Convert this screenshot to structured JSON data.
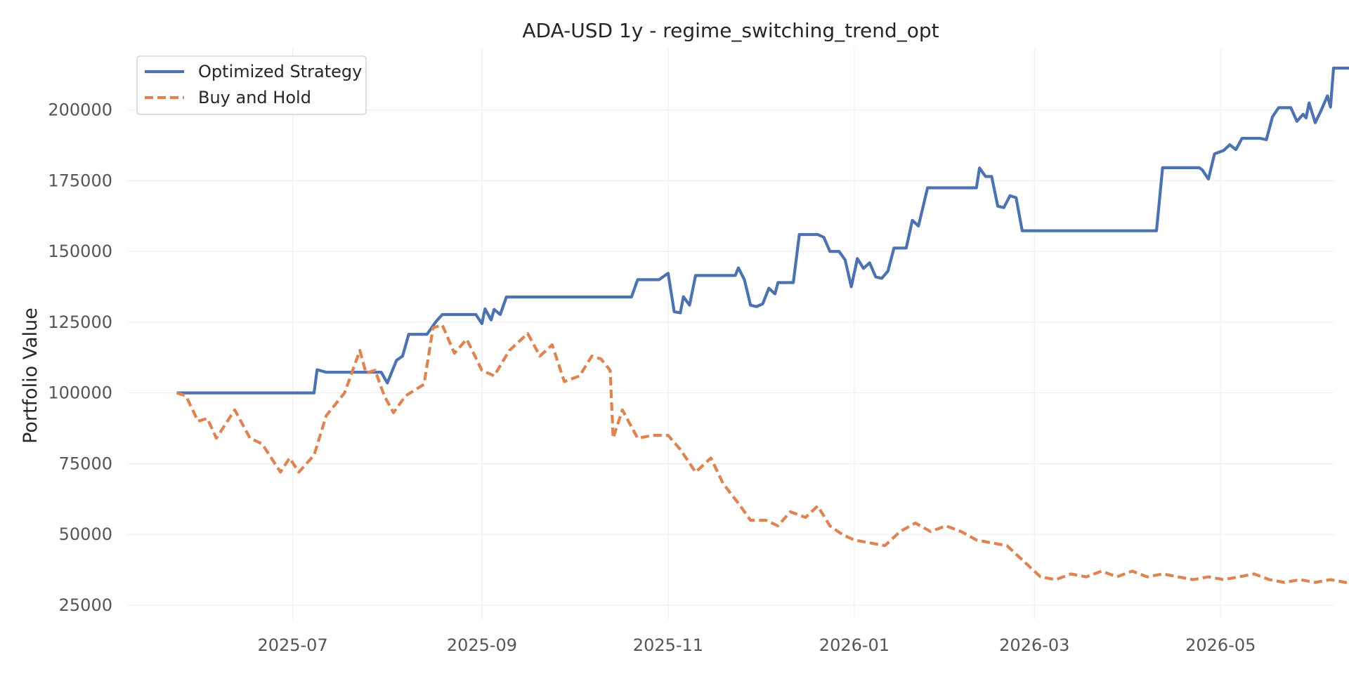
{
  "chart_data": {
    "type": "line",
    "title": "ADA-USD 1y - regime_switching_trend_opt",
    "xlabel": "",
    "ylabel": "Portfolio Value",
    "x_ticks": [
      "2025-07",
      "2025-09",
      "2025-11",
      "2026-01",
      "2026-03",
      "2026-05"
    ],
    "y_ticks": [
      25000,
      50000,
      75000,
      100000,
      125000,
      150000,
      175000,
      200000
    ],
    "xlim": [
      "2025-05-08",
      "2026-06-07"
    ],
    "ylim": [
      20000,
      222000
    ],
    "grid": true,
    "legend_position": "top-left",
    "series": [
      {
        "name": "Optimized Strategy",
        "color": "#4c72b0",
        "style": "solid",
        "points": [
          [
            "2025-05-24",
            100000
          ],
          [
            "2025-06-15",
            100000
          ],
          [
            "2025-07-08",
            100000
          ],
          [
            "2025-07-09",
            108200
          ],
          [
            "2025-07-12",
            107300
          ],
          [
            "2025-07-25",
            107300
          ],
          [
            "2025-07-30",
            107300
          ],
          [
            "2025-08-01",
            103500
          ],
          [
            "2025-08-04",
            111500
          ],
          [
            "2025-08-06",
            113000
          ],
          [
            "2025-08-08",
            120700
          ],
          [
            "2025-08-14",
            120700
          ],
          [
            "2025-08-17",
            125300
          ],
          [
            "2025-08-19",
            127700
          ],
          [
            "2025-08-30",
            127700
          ],
          [
            "2025-09-01",
            124500
          ],
          [
            "2025-09-02",
            129700
          ],
          [
            "2025-09-04",
            125800
          ],
          [
            "2025-09-05",
            129500
          ],
          [
            "2025-09-07",
            127700
          ],
          [
            "2025-09-09",
            133900
          ],
          [
            "2025-09-25",
            133900
          ],
          [
            "2025-10-20",
            133900
          ],
          [
            "2025-10-22",
            140000
          ],
          [
            "2025-10-29",
            140000
          ],
          [
            "2025-11-01",
            142300
          ],
          [
            "2025-11-03",
            128700
          ],
          [
            "2025-11-05",
            128300
          ],
          [
            "2025-11-06",
            134000
          ],
          [
            "2025-11-08",
            131000
          ],
          [
            "2025-11-10",
            141500
          ],
          [
            "2025-11-23",
            141500
          ],
          [
            "2025-11-24",
            144200
          ],
          [
            "2025-11-26",
            140000
          ],
          [
            "2025-11-28",
            131000
          ],
          [
            "2025-11-30",
            130500
          ],
          [
            "2025-12-02",
            131500
          ],
          [
            "2025-12-04",
            137000
          ],
          [
            "2025-12-06",
            135000
          ],
          [
            "2025-12-07",
            139000
          ],
          [
            "2025-12-12",
            139000
          ],
          [
            "2025-12-14",
            156000
          ],
          [
            "2025-12-20",
            156000
          ],
          [
            "2025-12-22",
            155000
          ],
          [
            "2025-12-24",
            150000
          ],
          [
            "2025-12-27",
            150000
          ],
          [
            "2025-12-29",
            147000
          ],
          [
            "2025-12-31",
            137500
          ],
          [
            "2026-01-02",
            147500
          ],
          [
            "2026-01-04",
            144000
          ],
          [
            "2026-01-06",
            146000
          ],
          [
            "2026-01-08",
            141000
          ],
          [
            "2026-01-10",
            140500
          ],
          [
            "2026-01-12",
            143000
          ],
          [
            "2026-01-14",
            151200
          ],
          [
            "2026-01-18",
            151200
          ],
          [
            "2026-01-20",
            161000
          ],
          [
            "2026-01-22",
            159000
          ],
          [
            "2026-01-25",
            172500
          ],
          [
            "2026-02-10",
            172500
          ],
          [
            "2026-02-11",
            179500
          ],
          [
            "2026-02-13",
            176500
          ],
          [
            "2026-02-15",
            176500
          ],
          [
            "2026-02-17",
            166000
          ],
          [
            "2026-02-19",
            165500
          ],
          [
            "2026-02-21",
            169700
          ],
          [
            "2026-02-23",
            169000
          ],
          [
            "2026-02-25",
            157300
          ],
          [
            "2026-03-15",
            157300
          ],
          [
            "2026-04-10",
            157300
          ],
          [
            "2026-04-12",
            179600
          ],
          [
            "2026-04-24",
            179600
          ],
          [
            "2026-04-25",
            178800
          ],
          [
            "2026-04-27",
            175600
          ],
          [
            "2026-04-29",
            184500
          ],
          [
            "2026-05-02",
            185700
          ],
          [
            "2026-05-04",
            187700
          ],
          [
            "2026-05-06",
            186000
          ],
          [
            "2026-05-08",
            190000
          ],
          [
            "2026-05-14",
            190000
          ],
          [
            "2026-05-16",
            189500
          ],
          [
            "2026-05-18",
            197600
          ],
          [
            "2026-05-20",
            200800
          ],
          [
            "2026-05-24",
            200800
          ],
          [
            "2026-05-26",
            196000
          ],
          [
            "2026-05-28",
            198500
          ],
          [
            "2026-05-29",
            197200
          ],
          [
            "2026-05-30",
            202500
          ],
          [
            "2026-06-01",
            195500
          ],
          [
            "2026-06-03",
            200000
          ],
          [
            "2026-06-05",
            205000
          ],
          [
            "2026-06-06",
            201000
          ],
          [
            "2026-06-07",
            214800
          ],
          [
            "2026-06-10",
            214800
          ],
          [
            "2026-06-12",
            214800
          ],
          [
            "2026-06-14",
            214800
          ],
          [
            "2026-06-16",
            214800
          ],
          [
            "2026-06-18",
            214800
          ],
          [
            "2026-06-20",
            214800
          ],
          [
            "2026-06-22",
            214800
          ],
          [
            "2026-06-23",
            214800
          ],
          [
            "2026-06-24",
            214800
          ],
          [
            "2026-06-25",
            214800
          ],
          [
            "2026-06-26",
            214800
          ]
        ]
      },
      {
        "name": "Buy and Hold",
        "color": "#dd8452",
        "style": "dashed",
        "points": []
      }
    ]
  }
}
